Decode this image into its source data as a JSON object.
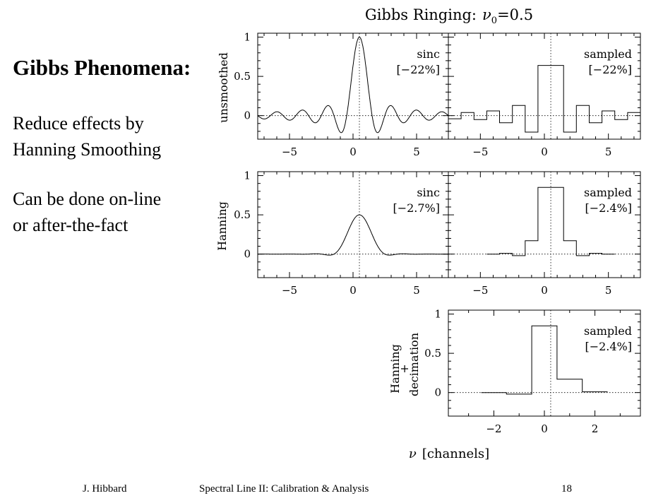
{
  "slide": {
    "heading": "Gibbs Phenomena:",
    "paragraphs": [
      [
        "Reduce effects by",
        "Hanning Smoothing"
      ],
      [
        "Can be done on-line",
        "or after-the-fact"
      ]
    ]
  },
  "footer": {
    "author": "J. Hibbard",
    "title": "Spectral Line II: Calibration & Analysis",
    "page": "18"
  },
  "figure": {
    "title_main": "Gibbs Ringing:",
    "title_symbol": "ν",
    "title_subscript": "0",
    "title_value": "=0.5",
    "xlabel_symbol": "ν",
    "xlabel_text": "[channels]",
    "row_labels": [
      [
        "unsmoothed"
      ],
      [
        "Hanning"
      ],
      [
        "Hanning",
        "+",
        "decimation"
      ]
    ]
  },
  "chart_data": [
    {
      "type": "line",
      "row": 1,
      "label": "sinc",
      "annotation": "[−22%]",
      "function": "sinc(x - 0.5)",
      "xlim": [
        -7.5,
        7.5
      ],
      "ylim": [
        -0.3,
        1.05
      ],
      "xticks": [
        -5,
        0,
        5
      ],
      "yticks": [
        0,
        0.5,
        1
      ],
      "ytick_labels": [
        "0",
        "0.5",
        "1"
      ],
      "reference_lines": {
        "x": 0.5,
        "y": 0
      }
    },
    {
      "type": "step",
      "row": 1,
      "label": "sampled",
      "annotation": "[−22%]",
      "channels": [
        -7,
        -6,
        -5,
        -4,
        -3,
        -2,
        -1,
        0,
        1,
        2,
        3,
        4,
        5,
        6,
        7
      ],
      "values": [
        -0.04,
        0.04,
        -0.05,
        0.06,
        -0.09,
        0.13,
        -0.21,
        0.64,
        0.64,
        -0.21,
        0.13,
        -0.09,
        0.06,
        -0.05,
        0.04
      ],
      "xlim": [
        -7.5,
        7.5
      ],
      "ylim": [
        -0.3,
        1.05
      ],
      "xticks": [
        -5,
        0,
        5
      ],
      "yticks": [
        0,
        0.5,
        1
      ],
      "reference_lines": {
        "x": 0.5,
        "y": 0
      }
    },
    {
      "type": "line",
      "row": 2,
      "label": "sinc",
      "annotation": "[−2.7%]",
      "function": "Hanning-smoothed sinc(x - 0.5)",
      "xlim": [
        -7.5,
        7.5
      ],
      "ylim": [
        -0.3,
        1.05
      ],
      "xticks": [
        -5,
        0,
        5
      ],
      "yticks": [
        0,
        0.5,
        1
      ],
      "ytick_labels": [
        "0",
        "0.5",
        "1"
      ],
      "reference_lines": {
        "x": 0.5,
        "y": 0
      }
    },
    {
      "type": "step",
      "row": 2,
      "label": "sampled",
      "annotation": "[−2.4%]",
      "channels": [
        -4,
        -3,
        -2,
        -1,
        0,
        1,
        2,
        3,
        4,
        5
      ],
      "values": [
        0.0,
        0.01,
        -0.02,
        0.17,
        0.85,
        0.85,
        0.17,
        -0.02,
        0.01,
        0.0
      ],
      "xlim": [
        -7.5,
        7.5
      ],
      "ylim": [
        -0.3,
        1.05
      ],
      "xticks": [
        -5,
        0,
        5
      ],
      "yticks": [
        0,
        0.5,
        1
      ],
      "reference_lines": {
        "x": 0.5,
        "y": 0
      }
    },
    {
      "type": "step",
      "row": 3,
      "label": "sampled",
      "annotation": "[−2.4%]",
      "channels": [
        -2,
        -1,
        0,
        1,
        2
      ],
      "values": [
        0.0,
        -0.02,
        0.85,
        0.17,
        0.01
      ],
      "xlim": [
        -3.8,
        3.8
      ],
      "ylim": [
        -0.3,
        1.05
      ],
      "xticks": [
        -2,
        0,
        2
      ],
      "yticks": [
        0,
        0.5,
        1
      ],
      "ytick_labels": [
        "0",
        "0.5",
        "1"
      ],
      "reference_lines": {
        "x": 0.25,
        "y": 0
      }
    }
  ]
}
